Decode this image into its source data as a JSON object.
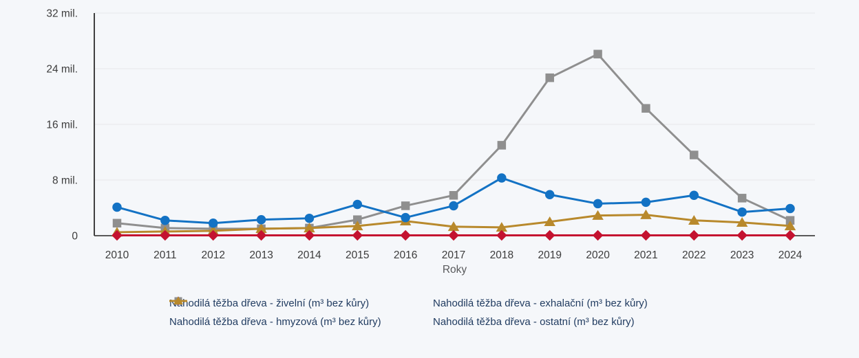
{
  "chart_data": {
    "type": "line",
    "title": "",
    "xlabel": "Roky",
    "ylabel": "",
    "x": [
      "2010",
      "2011",
      "2012",
      "2013",
      "2014",
      "2015",
      "2016",
      "2017",
      "2018",
      "2019",
      "2020",
      "2021",
      "2022",
      "2023",
      "2024"
    ],
    "ylim": [
      0,
      32
    ],
    "y_ticks": [
      {
        "value": 0,
        "label": "0"
      },
      {
        "value": 8,
        "label": "8 mil."
      },
      {
        "value": 16,
        "label": "16 mil."
      },
      {
        "value": 24,
        "label": "24 mil."
      },
      {
        "value": 32,
        "label": "32 mil."
      }
    ],
    "grid": "horizontal",
    "legend_position": "bottom",
    "legend_order": [
      0,
      2,
      1,
      3
    ],
    "values_unit": "mil.",
    "series": [
      {
        "key": "zivelni",
        "name": "Nahodilá těžba dřeva - živelní (m³ bez kůry)",
        "marker": "circle",
        "color": "#1372c4",
        "values": [
          4.1,
          2.2,
          1.8,
          2.3,
          2.5,
          4.5,
          2.6,
          4.3,
          8.3,
          5.9,
          4.6,
          4.8,
          5.8,
          3.4,
          3.9
        ]
      },
      {
        "key": "hmyzova",
        "name": "Nahodilá těžba dřeva - hmyzová (m³ bez kůry)",
        "marker": "square",
        "color": "#8f8f8f",
        "values": [
          1.8,
          1.1,
          1.0,
          1.0,
          1.1,
          2.3,
          4.3,
          5.8,
          13.0,
          22.7,
          26.1,
          18.3,
          11.6,
          5.4,
          2.2
        ]
      },
      {
        "key": "exhalacni",
        "name": "Nahodilá těžba dřeva - exhalační (m³ bez kůry)",
        "marker": "diamond",
        "color": "#c41230",
        "values": [
          0.05,
          0.05,
          0.05,
          0.05,
          0.05,
          0.05,
          0.05,
          0.05,
          0.05,
          0.05,
          0.05,
          0.05,
          0.05,
          0.05,
          0.05
        ]
      },
      {
        "key": "ostatni",
        "name": "Nahodilá těžba dřeva - ostatní (m³ bez kůry)",
        "marker": "triangle",
        "color": "#b8892c",
        "values": [
          0.5,
          0.6,
          0.7,
          1.0,
          1.1,
          1.4,
          2.1,
          1.3,
          1.2,
          2.0,
          2.9,
          3.0,
          2.2,
          1.9,
          1.4
        ]
      }
    ],
    "colors": {
      "background": "#f5f7fa",
      "grid": "#e6e7e9",
      "axis_y": "#3f3f3f",
      "axis_x": "#595959",
      "tick_text": "#3c3c3c",
      "xlabel_text": "#58595b",
      "legend_text": "#1f3a5f"
    }
  }
}
